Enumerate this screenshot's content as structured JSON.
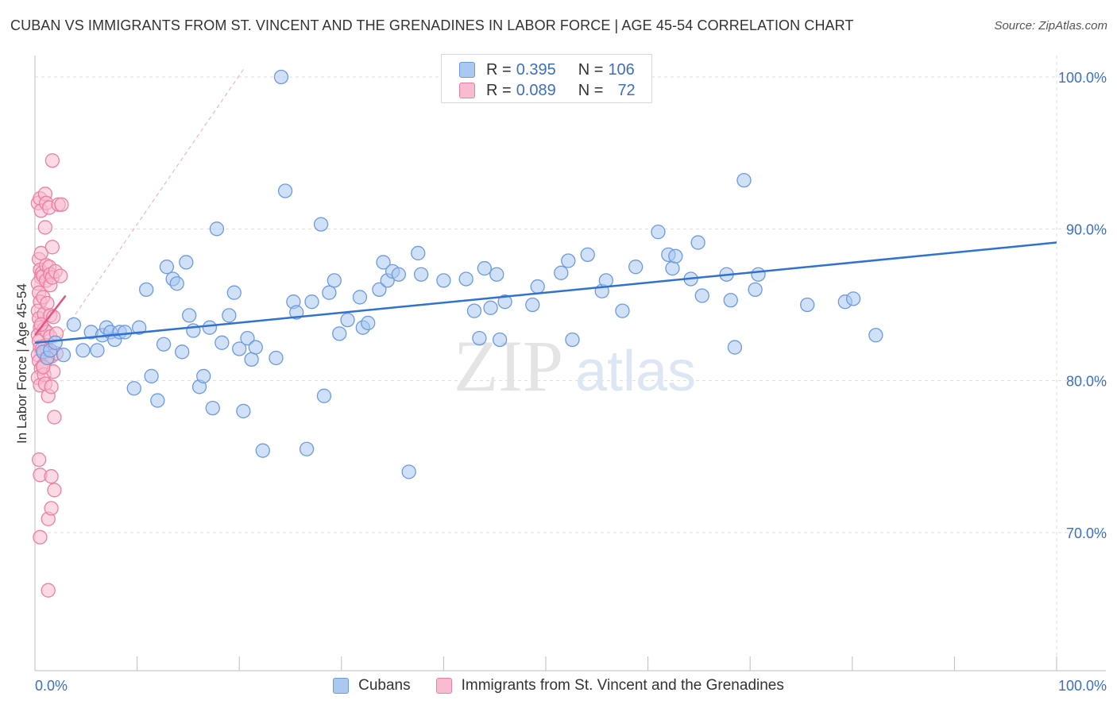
{
  "title": "CUBAN VS IMMIGRANTS FROM ST. VINCENT AND THE GRENADINES IN LABOR FORCE | AGE 45-54 CORRELATION CHART",
  "source": "Source: ZipAtlas.com",
  "watermark": {
    "zip": "ZIP",
    "atlas": "atlas"
  },
  "legend": {
    "rows": [
      {
        "r_label": "R =",
        "r_value": "0.395",
        "n_label": "N =",
        "n_value": "106"
      },
      {
        "r_label": "R =",
        "r_value": "0.089",
        "n_label": "N =",
        "n_value": "72"
      }
    ]
  },
  "colors": {
    "blue_fill": "#aac8f0",
    "blue_stroke": "#6c9ae0",
    "blue_line": "#2f72cf",
    "pink_fill": "#f7bcd0",
    "pink_stroke": "#ec7fa3",
    "pink_line": "#e05585",
    "axis_label": "#3b6fc4",
    "grid": "#dddddd"
  },
  "chart_data": {
    "type": "scatter",
    "title": "CUBAN VS IMMIGRANTS FROM ST. VINCENT AND THE GRENADINES IN LABOR FORCE | AGE 45-54 CORRELATION CHART",
    "xlabel": "",
    "ylabel": "In Labor Force | Age 45-54",
    "xlim": [
      0,
      100
    ],
    "ylim": [
      60,
      101
    ],
    "x_tick_labels": [
      "0.0%",
      "100.0%"
    ],
    "y_ticks": [
      70,
      80,
      90,
      100
    ],
    "y_tick_labels": [
      "70.0%",
      "80.0%",
      "90.0%",
      "100.0%"
    ],
    "grid": true,
    "legend_position": "bottom",
    "series": [
      {
        "name": "Cubans",
        "color": "#aac8f0",
        "r": 0.395,
        "n": 106,
        "trend": {
          "x": [
            0,
            100
          ],
          "y": [
            82.5,
            89.1
          ]
        },
        "points": [
          [
            0.8,
            81.9
          ],
          [
            1.2,
            81.5
          ],
          [
            1.5,
            82.0
          ],
          [
            2.0,
            82.5
          ],
          [
            2.8,
            81.7
          ],
          [
            3.8,
            83.7
          ],
          [
            4.7,
            82.0
          ],
          [
            5.5,
            83.2
          ],
          [
            6.1,
            82.0
          ],
          [
            6.6,
            83.0
          ],
          [
            7.0,
            83.5
          ],
          [
            7.4,
            83.2
          ],
          [
            7.8,
            82.7
          ],
          [
            8.3,
            83.2
          ],
          [
            8.8,
            83.2
          ],
          [
            9.7,
            79.5
          ],
          [
            10.2,
            83.5
          ],
          [
            10.9,
            86.0
          ],
          [
            11.4,
            80.3
          ],
          [
            12.0,
            78.7
          ],
          [
            12.6,
            82.4
          ],
          [
            12.9,
            87.5
          ],
          [
            13.5,
            86.7
          ],
          [
            13.9,
            86.4
          ],
          [
            14.4,
            81.9
          ],
          [
            14.8,
            87.8
          ],
          [
            15.1,
            84.3
          ],
          [
            15.5,
            83.3
          ],
          [
            16.1,
            79.6
          ],
          [
            16.5,
            80.3
          ],
          [
            17.1,
            83.5
          ],
          [
            17.4,
            78.2
          ],
          [
            17.8,
            90.0
          ],
          [
            18.3,
            82.5
          ],
          [
            19.0,
            84.3
          ],
          [
            19.5,
            85.8
          ],
          [
            20.0,
            82.1
          ],
          [
            20.4,
            78.0
          ],
          [
            20.8,
            82.8
          ],
          [
            21.2,
            81.4
          ],
          [
            21.6,
            82.2
          ],
          [
            22.3,
            75.4
          ],
          [
            23.6,
            81.5
          ],
          [
            24.1,
            100.0
          ],
          [
            24.5,
            92.5
          ],
          [
            25.3,
            85.2
          ],
          [
            25.6,
            84.5
          ],
          [
            26.6,
            75.5
          ],
          [
            27.1,
            85.2
          ],
          [
            28.0,
            90.3
          ],
          [
            28.3,
            79.0
          ],
          [
            28.8,
            85.8
          ],
          [
            29.3,
            86.6
          ],
          [
            29.8,
            83.1
          ],
          [
            30.6,
            84.0
          ],
          [
            31.8,
            85.5
          ],
          [
            32.1,
            83.5
          ],
          [
            32.6,
            83.8
          ],
          [
            33.7,
            86.0
          ],
          [
            34.1,
            87.8
          ],
          [
            34.5,
            86.6
          ],
          [
            35.0,
            87.2
          ],
          [
            35.6,
            87.0
          ],
          [
            36.6,
            74.0
          ],
          [
            37.5,
            88.4
          ],
          [
            37.8,
            87.0
          ],
          [
            40.0,
            86.6
          ],
          [
            42.2,
            86.7
          ],
          [
            43.0,
            84.6
          ],
          [
            43.5,
            82.8
          ],
          [
            44.0,
            87.4
          ],
          [
            44.6,
            84.8
          ],
          [
            45.2,
            87.0
          ],
          [
            45.5,
            82.7
          ],
          [
            46.0,
            85.2
          ],
          [
            48.7,
            85.0
          ],
          [
            49.2,
            86.2
          ],
          [
            51.5,
            87.1
          ],
          [
            52.2,
            87.9
          ],
          [
            52.6,
            82.7
          ],
          [
            54.1,
            88.3
          ],
          [
            55.5,
            85.9
          ],
          [
            55.9,
            86.6
          ],
          [
            57.5,
            84.6
          ],
          [
            58.8,
            87.5
          ],
          [
            61.0,
            89.8
          ],
          [
            62.0,
            88.3
          ],
          [
            62.4,
            87.4
          ],
          [
            62.7,
            88.2
          ],
          [
            64.2,
            86.7
          ],
          [
            64.9,
            89.1
          ],
          [
            65.3,
            85.6
          ],
          [
            67.7,
            87.0
          ],
          [
            68.1,
            85.3
          ],
          [
            68.5,
            82.2
          ],
          [
            69.4,
            93.2
          ],
          [
            70.5,
            86.0
          ],
          [
            70.8,
            87.0
          ],
          [
            75.6,
            85.0
          ],
          [
            79.3,
            85.2
          ],
          [
            80.1,
            85.4
          ],
          [
            82.3,
            83.0
          ]
        ]
      },
      {
        "name": "Immigrants from St. Vincent and the Grenadines",
        "color": "#f7bcd0",
        "r": 0.089,
        "n": 72,
        "trend": {
          "x": [
            0,
            3.0
          ],
          "y": [
            83.0,
            85.6
          ]
        },
        "points": [
          [
            0.3,
            91.7
          ],
          [
            0.5,
            92.0
          ],
          [
            0.6,
            91.2
          ],
          [
            0.4,
            88.0
          ],
          [
            0.5,
            87.3
          ],
          [
            0.6,
            86.8
          ],
          [
            0.3,
            86.4
          ],
          [
            0.4,
            85.8
          ],
          [
            0.5,
            85.2
          ],
          [
            0.3,
            84.6
          ],
          [
            0.4,
            84.1
          ],
          [
            0.5,
            83.5
          ],
          [
            0.3,
            83.0
          ],
          [
            0.4,
            82.6
          ],
          [
            0.5,
            82.2
          ],
          [
            0.3,
            81.7
          ],
          [
            0.4,
            81.3
          ],
          [
            0.6,
            80.8
          ],
          [
            0.3,
            80.2
          ],
          [
            0.5,
            79.7
          ],
          [
            0.4,
            74.8
          ],
          [
            0.5,
            73.8
          ],
          [
            0.5,
            69.7
          ],
          [
            0.6,
            88.4
          ],
          [
            0.7,
            87.1
          ],
          [
            0.8,
            86.9
          ],
          [
            0.8,
            85.5
          ],
          [
            0.9,
            84.4
          ],
          [
            0.9,
            83.4
          ],
          [
            1.0,
            82.3
          ],
          [
            0.9,
            81.8
          ],
          [
            0.8,
            81.0
          ],
          [
            0.9,
            80.4
          ],
          [
            1.0,
            79.8
          ],
          [
            1.0,
            92.3
          ],
          [
            1.0,
            90.1
          ],
          [
            1.1,
            91.7
          ],
          [
            1.1,
            87.6
          ],
          [
            1.1,
            86.6
          ],
          [
            1.2,
            85.1
          ],
          [
            1.2,
            83.2
          ],
          [
            1.2,
            82.0
          ],
          [
            1.3,
            81.5
          ],
          [
            1.3,
            79.0
          ],
          [
            1.3,
            70.9
          ],
          [
            1.3,
            66.2
          ],
          [
            1.4,
            91.4
          ],
          [
            1.4,
            87.5
          ],
          [
            1.5,
            87.0
          ],
          [
            1.5,
            86.3
          ],
          [
            1.5,
            84.3
          ],
          [
            1.5,
            82.9
          ],
          [
            1.6,
            81.6
          ],
          [
            1.6,
            79.6
          ],
          [
            1.6,
            73.7
          ],
          [
            1.6,
            71.6
          ],
          [
            1.7,
            94.5
          ],
          [
            1.7,
            88.8
          ],
          [
            1.7,
            86.8
          ],
          [
            1.8,
            84.2
          ],
          [
            1.8,
            80.6
          ],
          [
            1.9,
            77.6
          ],
          [
            1.9,
            72.8
          ],
          [
            2.0,
            87.2
          ],
          [
            2.1,
            83.1
          ],
          [
            2.1,
            81.8
          ],
          [
            2.3,
            91.6
          ],
          [
            2.5,
            86.9
          ],
          [
            2.6,
            91.6
          ],
          [
            0.6,
            83.7
          ],
          [
            0.7,
            82.1
          ],
          [
            0.8,
            80.9
          ]
        ]
      }
    ]
  }
}
